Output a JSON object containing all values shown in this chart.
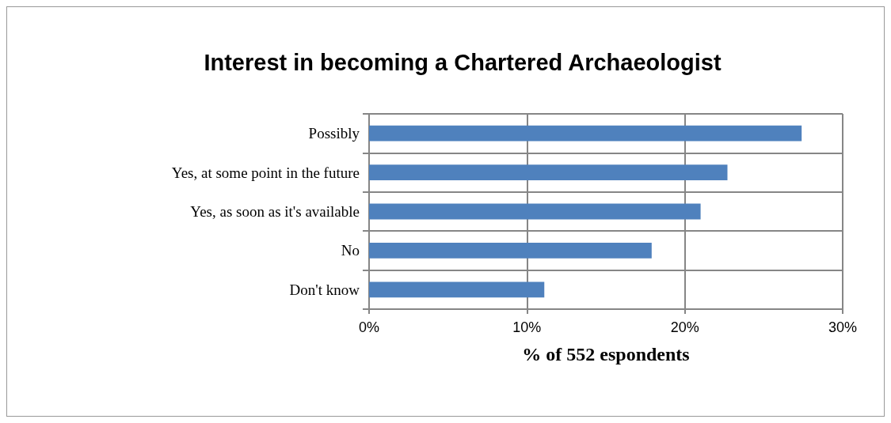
{
  "chart_data": {
    "type": "bar",
    "orientation": "horizontal",
    "title": "Interest in becoming a Chartered Archaeologist",
    "xlabel": "% of 552 espondents",
    "categories": [
      "Possibly",
      "Yes, at some point in the future",
      "Yes, as soon as it's available",
      "No",
      "Don't know"
    ],
    "values": [
      27.4,
      22.7,
      21.0,
      17.9,
      11.1
    ],
    "color": "#4f81bd",
    "xlim": [
      0,
      30
    ],
    "xticks": [
      {
        "value": 0,
        "label": "0%"
      },
      {
        "value": 10,
        "label": "10%"
      },
      {
        "value": 20,
        "label": "20%"
      },
      {
        "value": 30,
        "label": "30%"
      }
    ],
    "grid": true
  }
}
